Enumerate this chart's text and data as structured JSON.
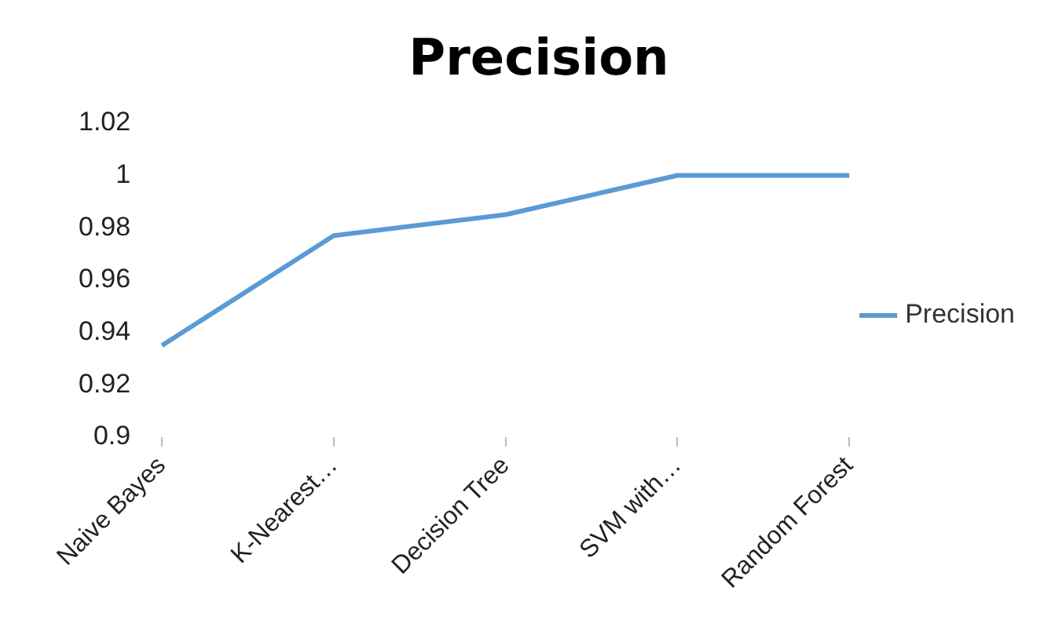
{
  "chart_data": {
    "type": "line",
    "title": "Precision",
    "categories": [
      "Naive Bayes",
      "K-Nearest…",
      "Decision Tree",
      "SVM with…",
      "Random Forest"
    ],
    "series": [
      {
        "name": "Precision",
        "color": "#5b9bd5",
        "values": [
          0.935,
          0.977,
          0.985,
          1,
          1
        ]
      }
    ],
    "ylim": [
      0.9,
      1.02
    ],
    "yticks": [
      0.9,
      0.92,
      0.94,
      0.96,
      0.98,
      1,
      1.02
    ],
    "grid": false,
    "legend": "right",
    "marker": "none",
    "line_style": "solid"
  }
}
